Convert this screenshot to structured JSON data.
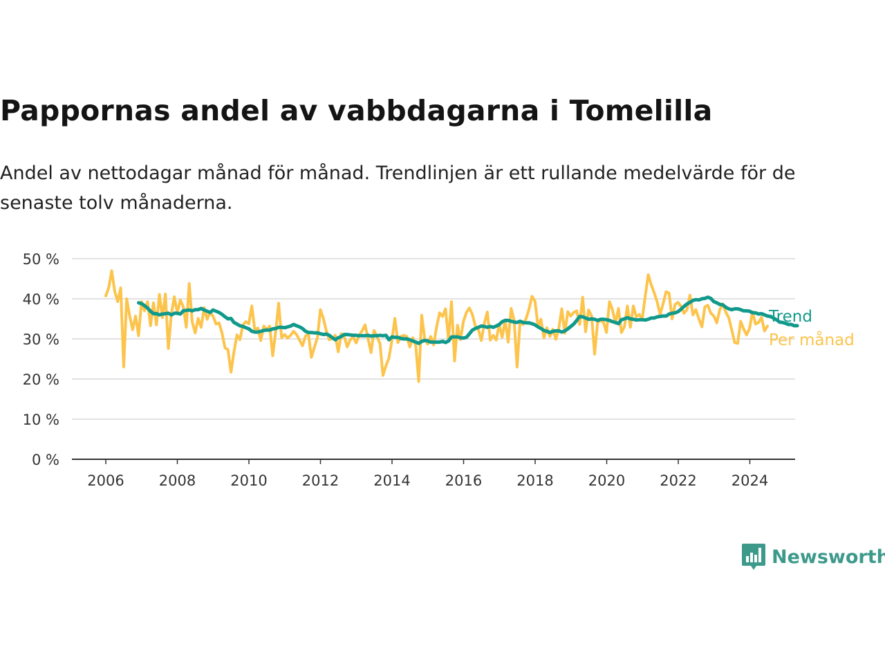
{
  "title": "Pappornas andel av vabbdagarna i Tomelilla",
  "subtitle": "Andel av nettodagar månad för månad. Trendlinjen är ett rullande medelvärde för de senaste tolv månaderna.",
  "brand": {
    "name": "Newsworthy",
    "color": "#3d9a8b"
  },
  "chart_data": {
    "type": "line",
    "ylim": [
      0,
      50
    ],
    "yticks": [
      0,
      10,
      20,
      30,
      40,
      50
    ],
    "ytick_labels": [
      "0 %",
      "10 %",
      "20 %",
      "30 %",
      "40 %",
      "50 %"
    ],
    "xlim": [
      2005.0,
      2025.0
    ],
    "xticks": [
      2006,
      2008,
      2010,
      2012,
      2014,
      2016,
      2018,
      2020,
      2022,
      2024
    ],
    "xtick_labels": [
      "2006",
      "2008",
      "2010",
      "2012",
      "2014",
      "2016",
      "2018",
      "2020",
      "2022",
      "2024"
    ],
    "grid": true,
    "legend": "end-of-line labels",
    "series": [
      {
        "name": "Per månad",
        "color": "#fcc44c",
        "x_start": 2006.0,
        "step": 0.0833,
        "values": [
          40.7,
          42.8,
          47.0,
          41.9,
          39.3,
          42.7,
          23.0,
          40.0,
          35.8,
          32.3,
          35.7,
          30.8,
          39.3,
          37.0,
          39.3,
          33.3,
          39.0,
          33.5,
          41.1,
          35.3,
          41.2,
          27.6,
          36.1,
          40.5,
          36.5,
          39.7,
          38.0,
          32.9,
          43.8,
          34.3,
          31.5,
          35.1,
          32.9,
          37.8,
          34.9,
          36.7,
          35.6,
          33.7,
          34.0,
          31.5,
          27.8,
          27.3,
          21.7,
          26.8,
          31.0,
          29.8,
          33.5,
          34.3,
          33.8,
          38.2,
          32.3,
          32.7,
          29.6,
          33.2,
          32.3,
          33.2,
          25.8,
          31.8,
          38.9,
          30.3,
          31.1,
          30.2,
          30.9,
          31.9,
          31.1,
          29.7,
          28.3,
          30.7,
          31.2,
          25.4,
          28.0,
          30.3,
          37.3,
          35.1,
          32.0,
          29.8,
          30.1,
          30.9,
          26.8,
          31.3,
          30.6,
          28.0,
          29.8,
          30.5,
          29.0,
          30.9,
          32.0,
          33.5,
          30.1,
          26.6,
          32.1,
          30.6,
          28.8,
          20.9,
          23.3,
          25.2,
          29.6,
          35.1,
          29.1,
          30.6,
          30.9,
          30.6,
          28.0,
          30.3,
          28.4,
          19.4,
          35.9,
          30.0,
          28.7,
          30.6,
          28.5,
          33.0,
          36.5,
          35.6,
          37.5,
          29.8,
          39.3,
          24.5,
          33.4,
          29.8,
          34.4,
          36.6,
          37.7,
          36.1,
          33.2,
          32.4,
          29.6,
          33.9,
          36.7,
          29.7,
          30.9,
          29.7,
          33.7,
          30.4,
          34.7,
          29.2,
          37.6,
          34.6,
          23.0,
          34.3,
          33.6,
          35.0,
          37.4,
          40.6,
          39.4,
          33.1,
          34.9,
          30.3,
          32.8,
          30.6,
          32.4,
          29.9,
          32.6,
          37.5,
          31.4,
          36.8,
          35.7,
          36.6,
          37.0,
          33.6,
          40.4,
          31.8,
          37.2,
          35.7,
          26.2,
          34.1,
          34.6,
          34.1,
          31.6,
          39.3,
          37.3,
          33.9,
          37.6,
          31.6,
          33.0,
          38.2,
          32.9,
          38.2,
          35.5,
          36.1,
          35.0,
          40.8,
          46.0,
          43.5,
          41.5,
          39.2,
          36.1,
          38.8,
          41.8,
          41.4,
          35.0,
          38.6,
          39.1,
          38.1,
          36.4,
          37.3,
          40.9,
          36.0,
          37.3,
          35.0,
          33.0,
          38.0,
          38.4,
          36.4,
          35.7,
          34.0,
          37.3,
          38.7,
          36.7,
          35.3,
          32.3,
          29.1,
          28.9,
          34.4,
          32.5,
          31.0,
          32.6,
          36.8,
          33.7,
          34.1,
          35.4,
          32.0,
          33.2
        ]
      },
      {
        "name": "Trend",
        "color": "#11998b",
        "x_start": 2006.917,
        "step": 0.0833,
        "values": [
          39.0,
          38.8,
          38.3,
          37.7,
          36.9,
          36.3,
          36.3,
          36.0,
          36.2,
          36.3,
          36.4,
          36.0,
          36.4,
          36.4,
          36.2,
          37.0,
          37.1,
          37.2,
          37.0,
          37.3,
          37.3,
          37.6,
          37.2,
          36.9,
          36.6,
          37.2,
          36.9,
          36.6,
          36.1,
          35.5,
          35.0,
          35.1,
          34.1,
          33.7,
          33.3,
          33.1,
          32.8,
          32.5,
          31.9,
          31.7,
          31.7,
          31.9,
          32.1,
          32.2,
          32.2,
          32.5,
          32.6,
          32.9,
          32.9,
          32.8,
          33.0,
          33.2,
          33.6,
          33.3,
          33.0,
          32.6,
          31.9,
          31.6,
          31.6,
          31.5,
          31.5,
          31.3,
          31.1,
          31.2,
          30.9,
          30.3,
          29.8,
          30.3,
          30.6,
          31.1,
          31.1,
          31.0,
          30.9,
          30.9,
          30.8,
          30.8,
          30.8,
          30.9,
          30.7,
          30.8,
          30.8,
          30.9,
          30.8,
          30.9,
          29.8,
          30.5,
          30.4,
          30.4,
          30.1,
          30.0,
          30.0,
          29.8,
          29.5,
          29.2,
          28.9,
          29.4,
          29.6,
          29.5,
          29.2,
          29.2,
          29.2,
          29.2,
          29.4,
          29.1,
          29.5,
          30.5,
          30.5,
          30.5,
          30.3,
          30.2,
          30.4,
          31.3,
          32.2,
          32.6,
          32.9,
          33.2,
          33.1,
          32.9,
          33.1,
          32.9,
          33.2,
          33.6,
          34.3,
          34.6,
          34.6,
          34.4,
          34.2,
          34.1,
          34.4,
          34.1,
          34.0,
          34.0,
          33.8,
          33.5,
          33.0,
          32.6,
          32.1,
          31.9,
          31.6,
          31.9,
          32.0,
          32.0,
          31.7,
          32.0,
          32.5,
          33.1,
          33.7,
          34.6,
          35.6,
          35.5,
          35.2,
          34.9,
          35.0,
          34.9,
          34.6,
          34.9,
          34.9,
          34.8,
          34.6,
          34.3,
          34.1,
          33.8,
          34.8,
          35.0,
          35.3,
          35.0,
          34.9,
          34.7,
          34.8,
          34.8,
          34.7,
          34.9,
          35.2,
          35.2,
          35.5,
          35.6,
          35.7,
          35.7,
          36.2,
          36.4,
          36.5,
          36.8,
          37.4,
          38.1,
          38.7,
          39.1,
          39.6,
          39.8,
          39.7,
          40.0,
          40.1,
          40.4,
          40.1,
          39.3,
          39.0,
          38.6,
          38.5,
          37.9,
          37.5,
          37.3,
          37.5,
          37.5,
          37.3,
          37.0,
          37.0,
          36.9,
          36.5,
          36.5,
          36.2,
          36.3,
          36.0,
          35.7,
          35.6,
          35.2,
          34.8,
          34.2,
          34.1,
          33.9,
          33.6,
          33.6,
          33.3,
          33.3
        ]
      }
    ]
  }
}
